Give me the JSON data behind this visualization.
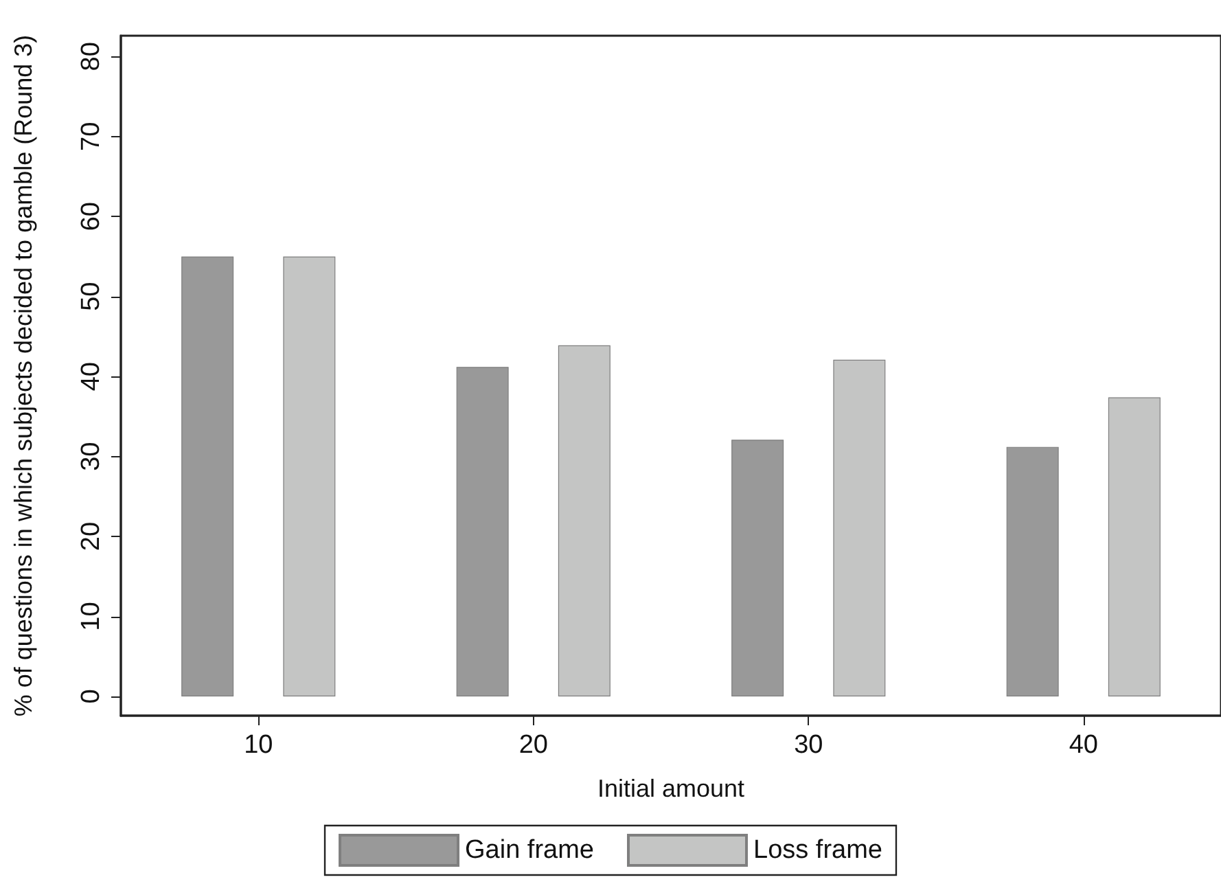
{
  "chart_data": {
    "type": "bar",
    "xlabel": "Initial amount",
    "ylabel": "% of questions in which subjects decided to gamble (Round 3)",
    "categories": [
      "10",
      "20",
      "30",
      "40"
    ],
    "series": [
      {
        "name": "Gain frame",
        "color": "#999999",
        "values": [
          55,
          41.2,
          32.1,
          31.2
        ]
      },
      {
        "name": "Loss frame",
        "color": "#c4c5c4",
        "values": [
          55,
          43.9,
          42.1,
          37.4
        ]
      }
    ],
    "ylim": [
      -2.4,
      82.6
    ],
    "yticks": [
      0,
      10,
      20,
      30,
      40,
      50,
      60,
      70,
      80
    ],
    "grid": false,
    "legend": "bottom"
  }
}
